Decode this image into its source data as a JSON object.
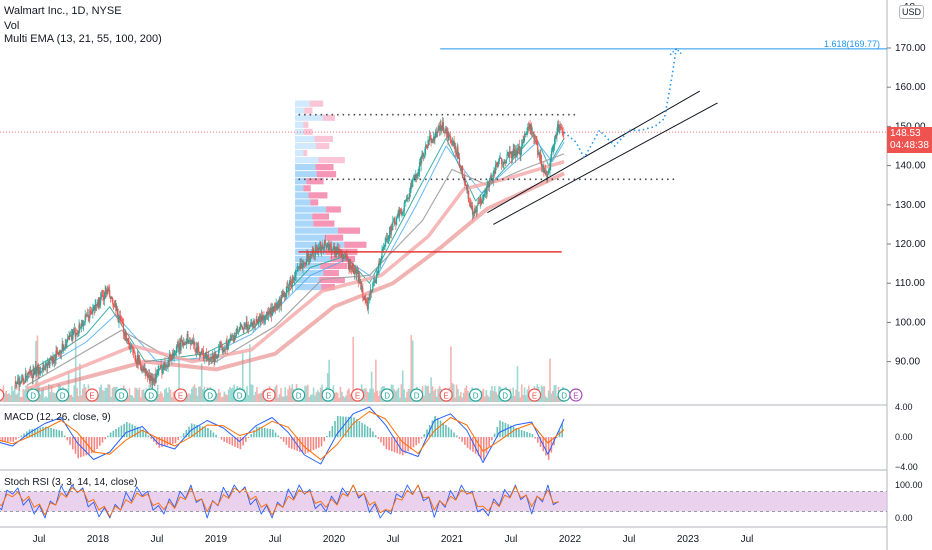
{
  "symbol_header": "Walmart Inc., 1D, NYSE",
  "volume_label": "Vol",
  "ema_label": "Multi EMA (13, 21, 55, 100, 200)",
  "macd_label": "MACD (12, 26, close, 9)",
  "rsi_label": "Stoch RSI (3, 3, 14, 14, close)",
  "currency": "USD",
  "top_tick": "18",
  "price_badge": {
    "price": "148.53",
    "countdown": "04:48:38"
  },
  "fib_label": "1.618(169.77)",
  "earnings_marker": "E",
  "dividend_marker": "D",
  "colors": {
    "up": "#26a69a",
    "down": "#ef5350",
    "ema_pink": "#f4a6a6",
    "ema_red": "#e57373",
    "fib_line": "#2196f3",
    "support": "#e53935",
    "rsi_fill": "#e1bee7",
    "macd_line": "#2962ff",
    "signal": "#ff6d00"
  },
  "chart_data": [
    {
      "type": "candlestick",
      "title": "Walmart Inc., 1D, NYSE",
      "xlabel": "",
      "ylabel": "",
      "x_ticks": [
        "Jul",
        "2018",
        "Jul",
        "2019",
        "Jul",
        "2020",
        "Jul",
        "2021",
        "Jul",
        "2022",
        "Jul",
        "2023",
        "Jul"
      ],
      "y_ticks": [
        90,
        100,
        110,
        120,
        130,
        140,
        150,
        160,
        170
      ],
      "ylim": [
        82,
        181
      ],
      "last_price": 148.53,
      "levels": [
        {
          "name": "resistance",
          "value": 153
        },
        {
          "name": "support",
          "value": 136.5
        },
        {
          "name": "support",
          "value": 118
        },
        {
          "name": "fibonacci",
          "value": 169.77,
          "label": "1.618(169.77)"
        }
      ],
      "price_path": [
        {
          "x": 2017.35,
          "y": 85
        },
        {
          "x": 2017.6,
          "y": 90
        },
        {
          "x": 2017.85,
          "y": 99
        },
        {
          "x": 2018.08,
          "y": 108
        },
        {
          "x": 2018.3,
          "y": 92
        },
        {
          "x": 2018.45,
          "y": 85
        },
        {
          "x": 2018.75,
          "y": 96
        },
        {
          "x": 2018.95,
          "y": 90
        },
        {
          "x": 2019.2,
          "y": 98
        },
        {
          "x": 2019.5,
          "y": 103
        },
        {
          "x": 2019.75,
          "y": 116
        },
        {
          "x": 2019.92,
          "y": 120
        },
        {
          "x": 2020.05,
          "y": 118
        },
        {
          "x": 2020.2,
          "y": 112
        },
        {
          "x": 2020.28,
          "y": 104
        },
        {
          "x": 2020.45,
          "y": 122
        },
        {
          "x": 2020.6,
          "y": 130
        },
        {
          "x": 2020.8,
          "y": 146
        },
        {
          "x": 2020.92,
          "y": 150
        },
        {
          "x": 2021.05,
          "y": 143
        },
        {
          "x": 2021.18,
          "y": 127
        },
        {
          "x": 2021.4,
          "y": 141
        },
        {
          "x": 2021.58,
          "y": 144
        },
        {
          "x": 2021.65,
          "y": 151
        },
        {
          "x": 2021.8,
          "y": 137
        },
        {
          "x": 2021.9,
          "y": 150
        },
        {
          "x": 2021.95,
          "y": 148.5
        }
      ],
      "projection_path": [
        {
          "x": 2021.95,
          "y": 148.5
        },
        {
          "x": 2022.05,
          "y": 146
        },
        {
          "x": 2022.12,
          "y": 142
        },
        {
          "x": 2022.25,
          "y": 149
        },
        {
          "x": 2022.38,
          "y": 145
        },
        {
          "x": 2022.5,
          "y": 149
        },
        {
          "x": 2022.6,
          "y": 149
        },
        {
          "x": 2022.72,
          "y": 150
        },
        {
          "x": 2022.8,
          "y": 152
        },
        {
          "x": 2022.86,
          "y": 162
        },
        {
          "x": 2022.9,
          "y": 169.8
        }
      ],
      "channel": [
        {
          "start": {
            "x": 2021.3,
            "y": 128
          },
          "end": {
            "x": 2023.1,
            "y": 159
          }
        },
        {
          "start": {
            "x": 2021.35,
            "y": 125
          },
          "end": {
            "x": 2023.25,
            "y": 156
          }
        }
      ],
      "ema": [
        {
          "name": "EMA 13",
          "path": [
            {
              "x": 2017.4,
              "y": 87
            },
            {
              "x": 2017.9,
              "y": 97
            },
            {
              "x": 2018.1,
              "y": 104
            },
            {
              "x": 2018.4,
              "y": 90
            },
            {
              "x": 2018.9,
              "y": 92
            },
            {
              "x": 2019.3,
              "y": 98
            },
            {
              "x": 2019.8,
              "y": 114
            },
            {
              "x": 2020.1,
              "y": 117
            },
            {
              "x": 2020.3,
              "y": 110
            },
            {
              "x": 2020.7,
              "y": 133
            },
            {
              "x": 2020.95,
              "y": 147
            },
            {
              "x": 2021.2,
              "y": 131
            },
            {
              "x": 2021.5,
              "y": 141
            },
            {
              "x": 2021.7,
              "y": 148
            },
            {
              "x": 2021.82,
              "y": 140
            },
            {
              "x": 2021.95,
              "y": 147
            }
          ]
        },
        {
          "name": "EMA 21",
          "path": [
            {
              "x": 2017.4,
              "y": 86
            },
            {
              "x": 2017.9,
              "y": 95
            },
            {
              "x": 2018.15,
              "y": 102
            },
            {
              "x": 2018.5,
              "y": 90
            },
            {
              "x": 2018.9,
              "y": 91
            },
            {
              "x": 2019.3,
              "y": 97
            },
            {
              "x": 2019.8,
              "y": 112
            },
            {
              "x": 2020.1,
              "y": 116
            },
            {
              "x": 2020.35,
              "y": 111
            },
            {
              "x": 2020.7,
              "y": 130
            },
            {
              "x": 2020.95,
              "y": 145
            },
            {
              "x": 2021.25,
              "y": 133
            },
            {
              "x": 2021.5,
              "y": 140
            },
            {
              "x": 2021.72,
              "y": 146
            },
            {
              "x": 2021.85,
              "y": 141
            },
            {
              "x": 2021.95,
              "y": 146
            }
          ]
        },
        {
          "name": "EMA 55",
          "path": [
            {
              "x": 2017.4,
              "y": 84
            },
            {
              "x": 2018.2,
              "y": 98
            },
            {
              "x": 2018.6,
              "y": 91
            },
            {
              "x": 2019.0,
              "y": 90
            },
            {
              "x": 2019.5,
              "y": 99
            },
            {
              "x": 2019.9,
              "y": 111
            },
            {
              "x": 2020.3,
              "y": 112
            },
            {
              "x": 2020.75,
              "y": 126
            },
            {
              "x": 2021.0,
              "y": 139
            },
            {
              "x": 2021.3,
              "y": 135
            },
            {
              "x": 2021.6,
              "y": 139
            },
            {
              "x": 2021.95,
              "y": 143
            }
          ]
        },
        {
          "name": "EMA 100",
          "path": [
            {
              "x": 2017.4,
              "y": 83
            },
            {
              "x": 2018.3,
              "y": 94
            },
            {
              "x": 2018.8,
              "y": 90
            },
            {
              "x": 2019.3,
              "y": 93
            },
            {
              "x": 2019.9,
              "y": 108
            },
            {
              "x": 2020.4,
              "y": 112
            },
            {
              "x": 2020.8,
              "y": 122
            },
            {
              "x": 2021.1,
              "y": 134
            },
            {
              "x": 2021.5,
              "y": 137
            },
            {
              "x": 2021.95,
              "y": 141
            }
          ]
        },
        {
          "name": "EMA 200",
          "path": [
            {
              "x": 2017.4,
              "y": 82
            },
            {
              "x": 2018.4,
              "y": 90
            },
            {
              "x": 2019.0,
              "y": 88
            },
            {
              "x": 2019.5,
              "y": 92
            },
            {
              "x": 2020.0,
              "y": 104
            },
            {
              "x": 2020.5,
              "y": 110
            },
            {
              "x": 2020.9,
              "y": 119
            },
            {
              "x": 2021.3,
              "y": 129
            },
            {
              "x": 2021.95,
              "y": 138
            }
          ]
        }
      ]
    },
    {
      "type": "line",
      "title": "MACD (12, 26, close, 9)",
      "y_ticks": [
        4,
        0,
        -4
      ],
      "ylim": [
        -5,
        5
      ],
      "series": [
        {
          "name": "MACD",
          "values": [
            0.4,
            -0.6,
            -1.2,
            0.5,
            1.8,
            2.6,
            -0.8,
            -3.0,
            -2.0,
            0.6,
            1.4,
            -0.9,
            -1.6,
            0.9,
            2.2,
            1.2,
            -0.6,
            1.5,
            2.6,
            0.6,
            -2.4,
            -3.6,
            0.4,
            3.1,
            4.0,
            1.6,
            -1.8,
            -2.6,
            2.2,
            3.1,
            0.9,
            -3.4,
            0.6,
            1.6,
            2.0,
            -2.3,
            2.4
          ]
        },
        {
          "name": "Signal",
          "values": [
            0.2,
            -0.3,
            -0.9,
            0.0,
            1.1,
            2.2,
            0.6,
            -2.0,
            -2.3,
            -0.4,
            0.9,
            -0.2,
            -1.2,
            0.0,
            1.6,
            1.5,
            0.2,
            0.8,
            2.1,
            1.3,
            -1.3,
            -3.0,
            -1.0,
            1.8,
            3.4,
            2.4,
            -0.6,
            -2.2,
            0.8,
            2.6,
            1.6,
            -1.9,
            -0.5,
            1.0,
            1.8,
            -0.8,
            1.0
          ]
        }
      ]
    },
    {
      "type": "line",
      "title": "Stoch RSI (3, 3, 14, 14, close)",
      "y_ticks": [
        100,
        0
      ],
      "ylim": [
        0,
        100
      ],
      "bands": [
        20,
        80
      ],
      "series": [
        {
          "name": "K",
          "values": [
            70,
            20,
            90,
            40,
            10,
            80,
            95,
            30,
            5,
            60,
            85,
            20,
            50,
            90,
            15,
            75,
            95,
            40,
            10,
            70,
            90,
            25,
            60,
            100,
            35,
            5,
            80,
            95,
            20,
            65,
            90,
            10,
            55,
            95,
            30,
            85,
            5
          ]
        },
        {
          "name": "D",
          "values": [
            60,
            35,
            75,
            55,
            20,
            65,
            90,
            45,
            15,
            45,
            75,
            35,
            40,
            80,
            30,
            60,
            90,
            55,
            20,
            55,
            85,
            40,
            50,
            90,
            50,
            15,
            65,
            90,
            35,
            55,
            85,
            25,
            45,
            85,
            45,
            75,
            20
          ]
        }
      ]
    }
  ]
}
